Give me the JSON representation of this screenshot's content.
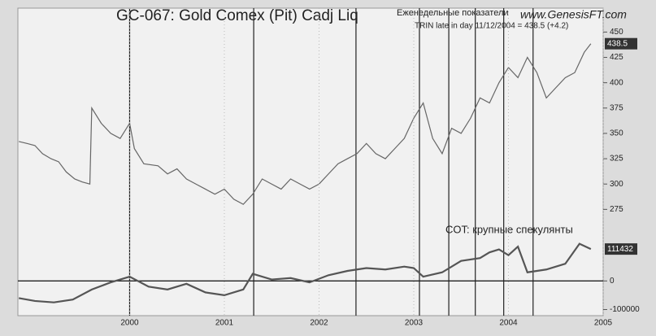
{
  "chart_data": [
    {
      "type": "line",
      "title": "GC-067:  Gold Comex (Pit) Cadj Liq",
      "subtitle": "Еженедельные показатели",
      "source": "www.GenesisFT.com",
      "annotation": "TRIN late in day  11/12/2004 = 438.5 (+4.2)",
      "last_value": 438.5,
      "x": [
        1998.83,
        1998.92,
        1999.0,
        1999.08,
        1999.17,
        1999.25,
        1999.33,
        1999.42,
        1999.5,
        1999.58,
        1999.6,
        1999.7,
        1999.8,
        1999.9,
        2000.0,
        2000.05,
        2000.15,
        2000.3,
        2000.4,
        2000.5,
        2000.6,
        2000.7,
        2000.8,
        2000.9,
        2001.0,
        2001.1,
        2001.2,
        2001.3,
        2001.4,
        2001.5,
        2001.6,
        2001.7,
        2001.8,
        2001.9,
        2002.0,
        2002.1,
        2002.2,
        2002.3,
        2002.4,
        2002.5,
        2002.6,
        2002.7,
        2002.8,
        2002.9,
        2003.0,
        2003.1,
        2003.2,
        2003.3,
        2003.4,
        2003.5,
        2003.6,
        2003.7,
        2003.8,
        2003.9,
        2004.0,
        2004.1,
        2004.2,
        2004.3,
        2004.4,
        2004.5,
        2004.6,
        2004.7,
        2004.8,
        2004.87
      ],
      "series": [
        {
          "color": "#666666",
          "values": [
            342,
            340,
            338,
            330,
            325,
            322,
            312,
            305,
            302,
            300,
            375,
            360,
            350,
            345,
            360,
            335,
            320,
            318,
            310,
            315,
            305,
            300,
            295,
            290,
            295,
            285,
            280,
            290,
            305,
            300,
            295,
            305,
            300,
            295,
            300,
            310,
            320,
            325,
            330,
            340,
            330,
            325,
            335,
            345,
            365,
            380,
            345,
            330,
            355,
            350,
            365,
            385,
            380,
            400,
            415,
            405,
            425,
            410,
            385,
            395,
            405,
            410,
            430,
            438.5
          ]
        }
      ],
      "xlim": [
        1998.82,
        2005.0
      ],
      "ylim": [
        252,
        472
      ],
      "yticks": [
        275,
        300,
        325,
        350,
        375,
        400,
        425,
        450
      ],
      "vlines": [
        2000.0,
        2001.31,
        2002.39,
        2003.06,
        2003.37,
        2003.65,
        2003.95,
        2004.26
      ]
    },
    {
      "type": "line",
      "title": "COT: крупные спекулянты",
      "last_value": 111432,
      "x": [
        1998.83,
        1999.0,
        1999.2,
        1999.4,
        1999.6,
        1999.8,
        2000.0,
        2000.2,
        2000.4,
        2000.6,
        2000.8,
        2001.0,
        2001.2,
        2001.3,
        2001.5,
        2001.7,
        2001.9,
        2002.1,
        2002.3,
        2002.5,
        2002.7,
        2002.9,
        2003.0,
        2003.1,
        2003.3,
        2003.5,
        2003.7,
        2003.8,
        2003.9,
        2004.0,
        2004.1,
        2004.2,
        2004.4,
        2004.6,
        2004.75,
        2004.87
      ],
      "series": [
        {
          "color": "#555555",
          "values": [
            -60000,
            -70000,
            -75000,
            -65000,
            -30000,
            -5000,
            15000,
            -20000,
            -30000,
            -10000,
            -40000,
            -50000,
            -30000,
            25000,
            5000,
            10000,
            -5000,
            20000,
            35000,
            45000,
            40000,
            50000,
            45000,
            15000,
            30000,
            70000,
            80000,
            100000,
            110000,
            90000,
            120000,
            30000,
            40000,
            60000,
            130000,
            111432
          ]
        }
      ],
      "xlim": [
        1998.82,
        2005.0
      ],
      "ylim": [
        -110000,
        180000
      ],
      "yticks": [
        0,
        -100000
      ],
      "xticks": [
        2000,
        2001,
        2002,
        2003,
        2004,
        2005
      ]
    }
  ]
}
